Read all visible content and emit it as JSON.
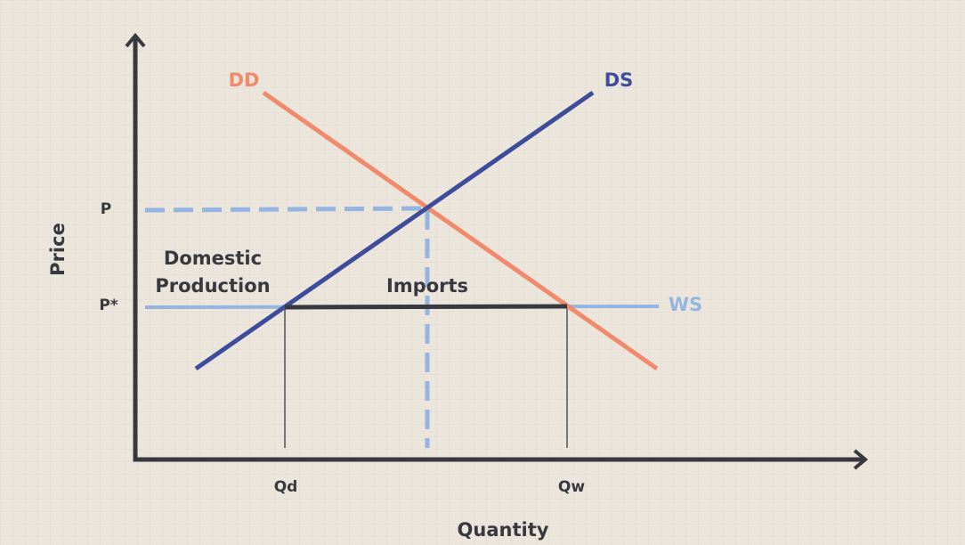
{
  "axes": {
    "y_label": "Price",
    "x_label": "Quantity"
  },
  "curves": {
    "demand": "DD",
    "supply": "DS",
    "world_supply": "WS"
  },
  "price_labels": {
    "p": "P",
    "p_star": "P*"
  },
  "quantity_labels": {
    "qd": "Qd",
    "qw": "Qw"
  },
  "regions": {
    "domestic_production": [
      "Domestic",
      "Production"
    ],
    "imports": "Imports"
  }
}
